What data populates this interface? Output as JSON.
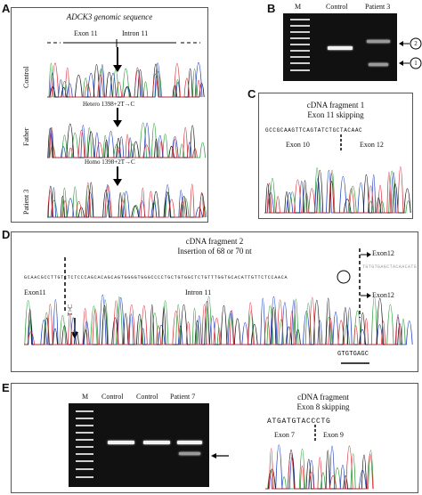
{
  "panels": {
    "A": {
      "label": "A",
      "title": "ADCK3 genomic sequence",
      "exon_label": "Exon 11",
      "intron_label": "Intron 11",
      "rows": [
        {
          "name": "Control",
          "annotation": ""
        },
        {
          "name": "Father",
          "annotation": "Hetero 1398+2T→C"
        },
        {
          "name": "Patient 3",
          "annotation": "Homo 1398+2T→C"
        }
      ]
    },
    "B": {
      "label": "B",
      "lanes": [
        "M",
        "Control",
        "Patient 3"
      ],
      "markers": [
        "2",
        "1"
      ]
    },
    "C": {
      "label": "C",
      "title": "cDNA fragment 1",
      "subtitle": "Exon 11 skipping",
      "sequence": "GCCGCAAGTTCAGTATCTGCTACAAC",
      "exon_left": "Exon 10",
      "exon_right": "Exon 12"
    },
    "D": {
      "label": "D",
      "title": "cDNA fragment 2",
      "subtitle": "Insertion of 68 or 70 nt",
      "sequence": "GCAACGCCTTGTCTCTCCCAGCACAGCAGTGGGGTGGGCCCCTGCTGTGGCTCTGTTTGGTGCACATTGTTCTCCAACA",
      "exon_left": "Exon11",
      "intron": "Intron 11",
      "mutation": "T>C",
      "exon12_top": "Exon12",
      "exon12_bottom": "Exon12",
      "alt_sequence": "TGTGTGAGCTACAACATG",
      "underline_text": "GTGTGAGC"
    },
    "E": {
      "label": "E",
      "lanes": [
        "M",
        "Control",
        "Control",
        "Patient 7"
      ],
      "title": "cDNA fragment",
      "subtitle": "Exon 8 skipping",
      "sequence": "ATGATGTACCCTG",
      "exon_left": "Exon 7",
      "exon_right": "Exon 9"
    }
  }
}
